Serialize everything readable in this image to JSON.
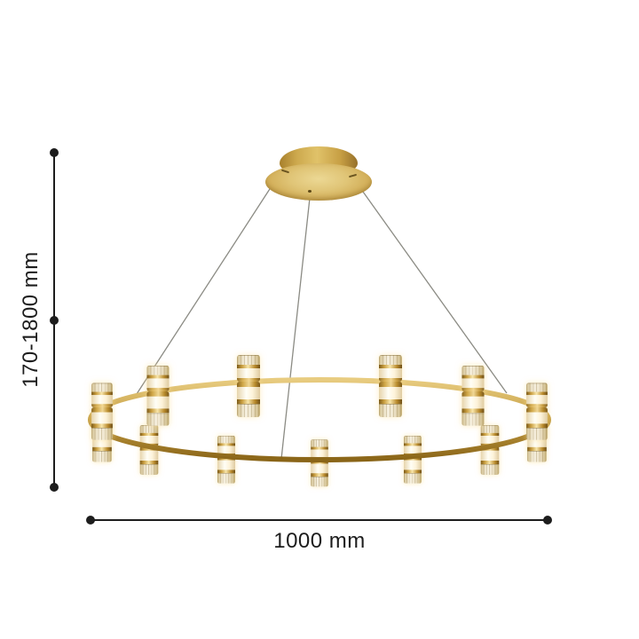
{
  "figure": {
    "kind": "product dimension diagram",
    "product": "ring chandelier with paired cylindrical glass shades on a round brass frame, hung by three cables from a round ceiling canopy",
    "visible_lamp_cylinders": 26,
    "colors": {
      "brass": "#cda54e",
      "brass_dark": "#8a6518",
      "brass_light": "#ecd894",
      "glass_warm_white": "#fdf3da",
      "cable": "#8b8b84",
      "dimension_line": "#1d1d1d",
      "background": "#ffffff"
    }
  },
  "dimensions": {
    "height_range": {
      "label": "170-1800 mm",
      "orientation": "vertical"
    },
    "diameter": {
      "label": "1000 mm",
      "orientation": "horizontal"
    }
  }
}
